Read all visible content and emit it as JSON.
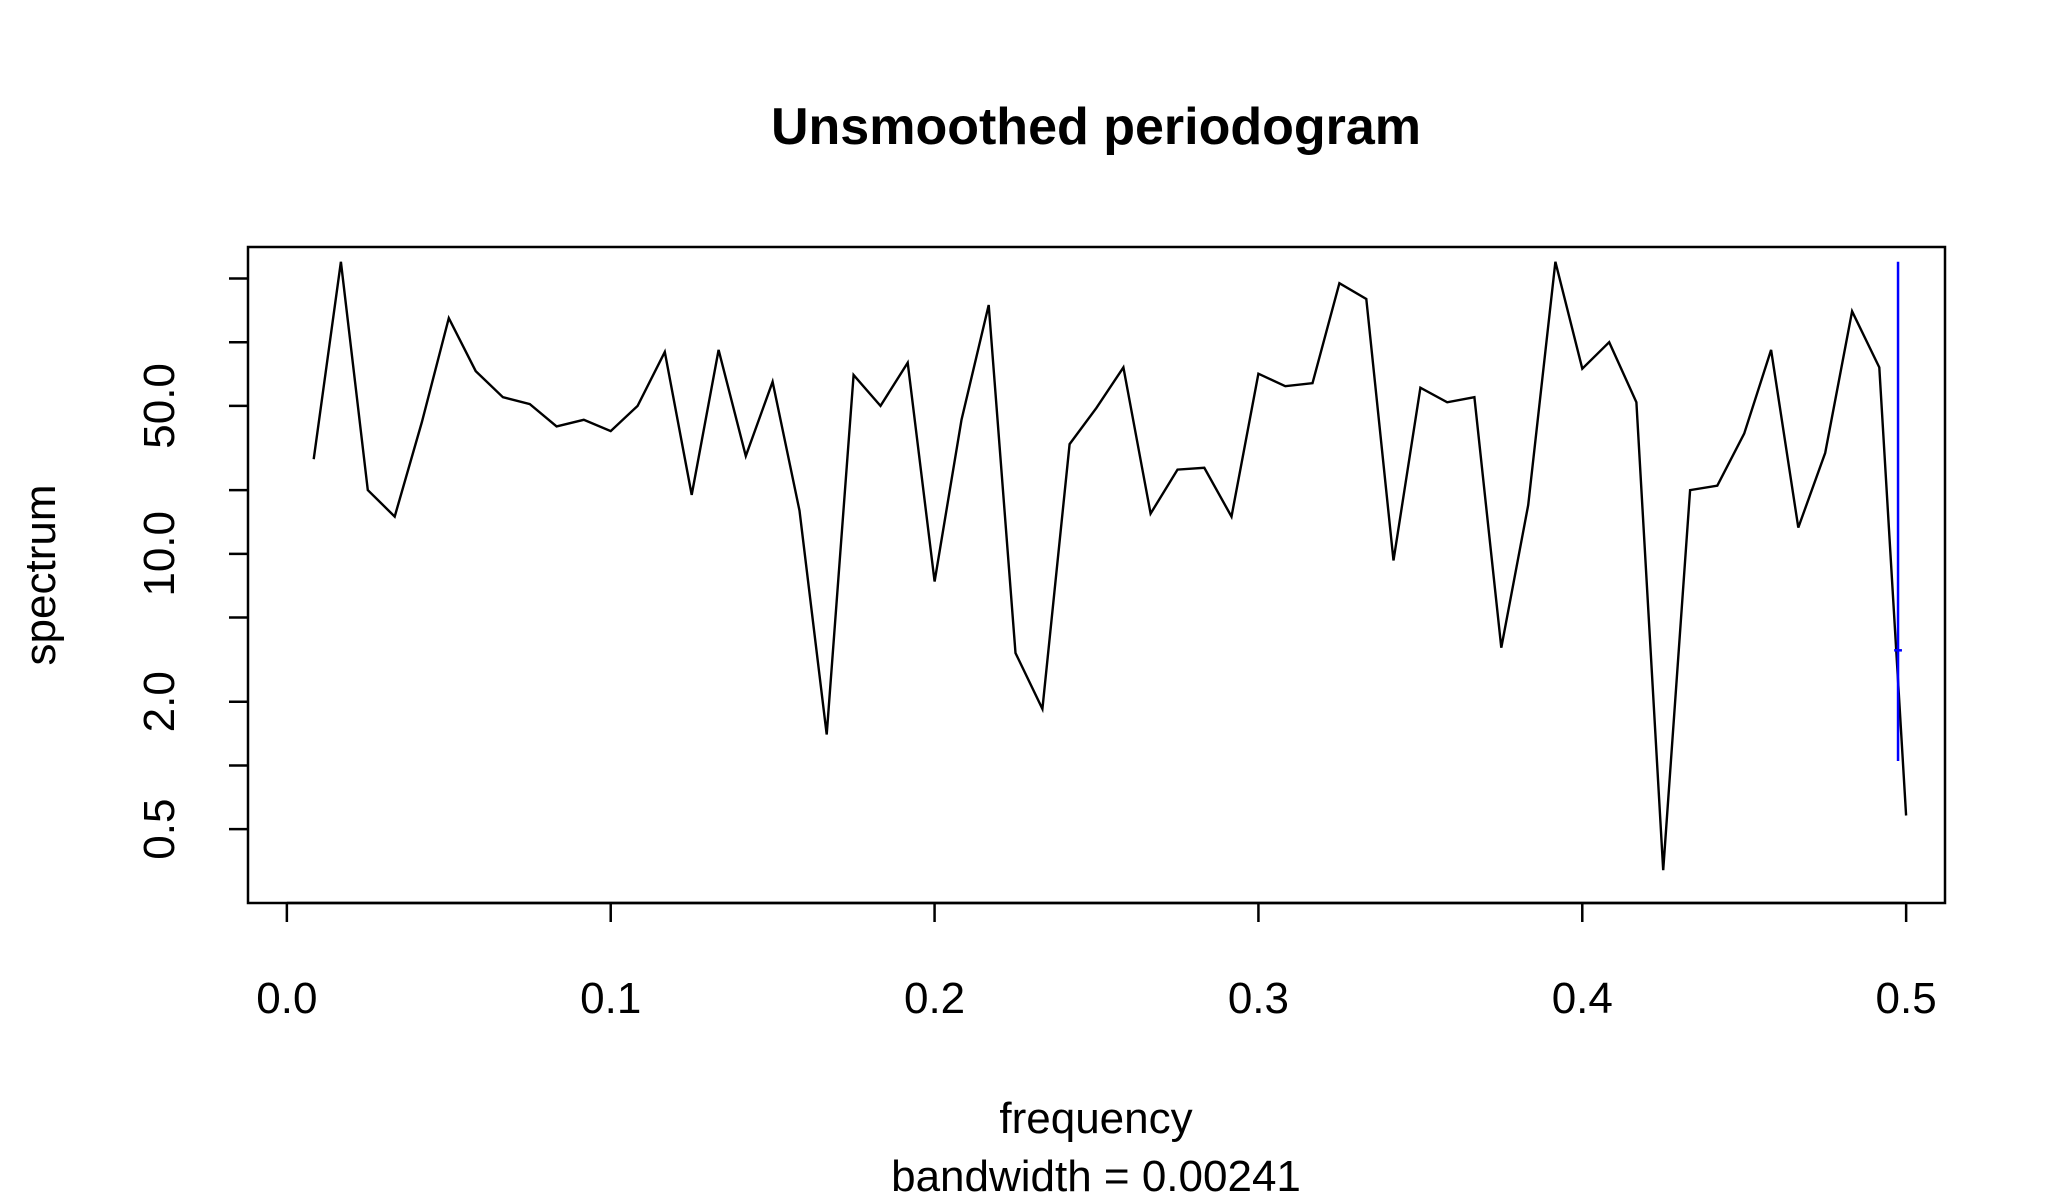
{
  "chart_data": {
    "type": "line",
    "title": "Unsmoothed periodogram",
    "xlabel": "frequency",
    "sub": "bandwidth = 0.00241",
    "ylabel": "spectrum",
    "y_scale": "log",
    "xlim": [
      -0.012,
      0.512
    ],
    "ylim_log10": [
      -0.65,
      2.45
    ],
    "x_ticks": [
      0,
      0.1,
      0.2,
      0.3,
      0.4,
      0.5
    ],
    "x_tick_labels": [
      "0.0",
      "0.1",
      "0.2",
      "0.3",
      "0.4",
      "0.5"
    ],
    "y_ticks": [
      0.5,
      1,
      2,
      5,
      10,
      20,
      50,
      100,
      200
    ],
    "y_tick_labels": [
      "0.5",
      "",
      "2.0",
      "",
      "10.0",
      "",
      "50.0",
      "",
      ""
    ],
    "grid": false,
    "series": [
      {
        "name": "spectrum",
        "color": "#000000",
        "x": [
          0.0083,
          0.0167,
          0.025,
          0.0333,
          0.0417,
          0.05,
          0.0583,
          0.0667,
          0.075,
          0.0833,
          0.0917,
          0.1,
          0.1083,
          0.1167,
          0.125,
          0.1333,
          0.1417,
          0.15,
          0.1583,
          0.1667,
          0.175,
          0.1833,
          0.1917,
          0.2,
          0.2083,
          0.2167,
          0.225,
          0.2333,
          0.2417,
          0.25,
          0.2583,
          0.2667,
          0.275,
          0.2833,
          0.2917,
          0.3,
          0.3083,
          0.3167,
          0.325,
          0.3333,
          0.3417,
          0.35,
          0.3583,
          0.3667,
          0.375,
          0.3833,
          0.3917,
          0.4,
          0.4083,
          0.4167,
          0.425,
          0.4333,
          0.4417,
          0.45,
          0.4583,
          0.4667,
          0.475,
          0.4833,
          0.4917,
          0.5
        ],
        "y": [
          28,
          240,
          20,
          15,
          42,
          130,
          73,
          55,
          51,
          40,
          43,
          38,
          50,
          90,
          19,
          92,
          29,
          65,
          16,
          1.4,
          70,
          50,
          80,
          7.4,
          43,
          150,
          3.4,
          1.85,
          33,
          49,
          76,
          15.5,
          25,
          25.5,
          15,
          71,
          62,
          64,
          190,
          160,
          9.3,
          61,
          52,
          55,
          3.6,
          17,
          240,
          75,
          100,
          52,
          0.32,
          20,
          21,
          37,
          92,
          13.3,
          30,
          140,
          76,
          0.58
        ]
      }
    ],
    "annotation": {
      "name": "bandwidth-ci-marker",
      "color": "#0000ff",
      "x": 0.4975,
      "y_range": [
        1.05,
        240
      ],
      "y_center": 3.5,
      "bandwidth": 0.00241
    }
  }
}
